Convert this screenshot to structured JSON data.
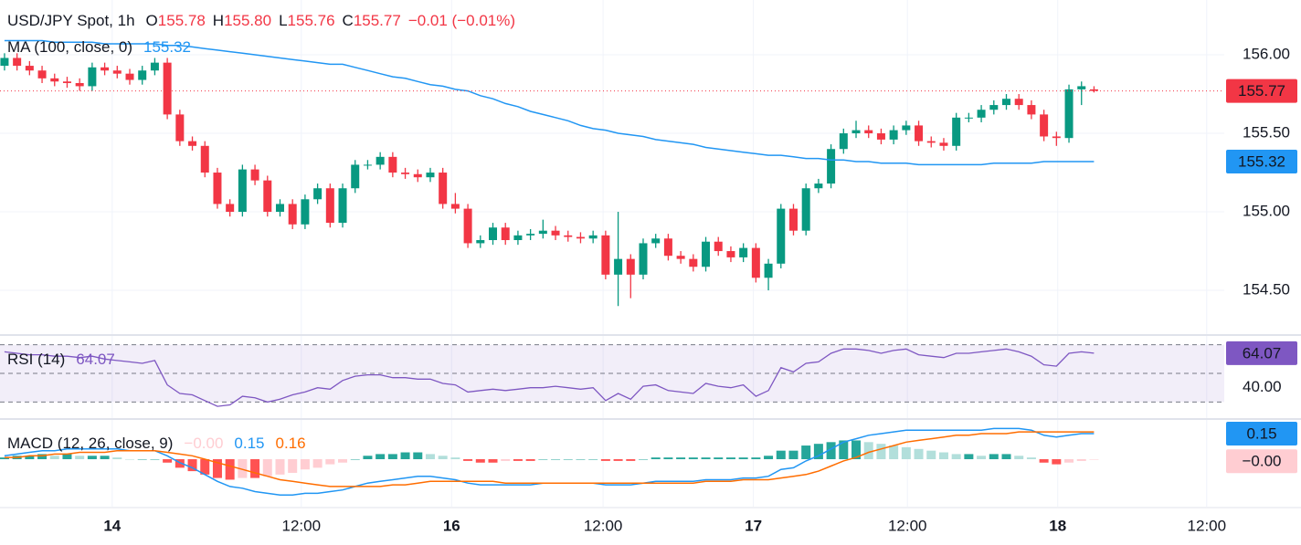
{
  "chart_data": [
    {
      "type": "candlestick",
      "legend": {
        "symbol": "USD/JPY Spot, 1h",
        "ohlc": [
          {
            "key": "O",
            "value": "155.78"
          },
          {
            "key": "H",
            "value": "155.80"
          },
          {
            "key": "L",
            "value": "155.76"
          },
          {
            "key": "C",
            "value": "155.77"
          }
        ],
        "change": "−0.01 (−0.01%)"
      },
      "up_color": "#089981",
      "down_color": "#f23645",
      "open": [
        155.93,
        155.98,
        155.93,
        155.9,
        155.85,
        155.83,
        155.82,
        155.8,
        155.92,
        155.9,
        155.88,
        155.84,
        155.9,
        155.95,
        155.62,
        155.45,
        155.42,
        155.25,
        155.05,
        155.0,
        155.27,
        155.2,
        155.0,
        155.05,
        154.92,
        155.08,
        155.15,
        154.93,
        155.15,
        155.3,
        155.3,
        155.35,
        155.25,
        155.24,
        155.22,
        155.25,
        155.05,
        155.02,
        154.8,
        154.82,
        154.9,
        154.82,
        154.85,
        154.86,
        154.88,
        154.85,
        154.84,
        154.83,
        154.85,
        154.6,
        154.7,
        154.6,
        154.8,
        154.83,
        154.72,
        154.7,
        154.65,
        154.81,
        154.75,
        154.71,
        154.77,
        154.58,
        154.67,
        155.02,
        154.88,
        155.15,
        155.18,
        155.4,
        155.5,
        155.52,
        155.5,
        155.46,
        155.52,
        155.55,
        155.45,
        155.44,
        155.42,
        155.6,
        155.6,
        155.65,
        155.68,
        155.72,
        155.68,
        155.62,
        155.48,
        155.47,
        155.78,
        155.78
      ],
      "high": [
        156.01,
        156.01,
        155.96,
        155.93,
        155.88,
        155.86,
        155.85,
        155.95,
        155.95,
        155.93,
        155.91,
        155.93,
        155.98,
        155.98,
        155.65,
        155.48,
        155.45,
        155.28,
        155.08,
        155.3,
        155.3,
        155.23,
        155.08,
        155.08,
        155.11,
        155.18,
        155.18,
        155.18,
        155.33,
        155.33,
        155.38,
        155.38,
        155.28,
        155.27,
        155.28,
        155.28,
        155.12,
        155.05,
        154.85,
        154.93,
        154.93,
        154.88,
        154.89,
        154.95,
        154.91,
        154.88,
        154.87,
        154.88,
        154.88,
        155.0,
        154.73,
        154.83,
        154.86,
        154.86,
        154.75,
        154.73,
        154.84,
        154.84,
        154.78,
        154.8,
        154.8,
        154.7,
        155.05,
        155.05,
        155.18,
        155.21,
        155.43,
        155.53,
        155.58,
        155.55,
        155.53,
        155.55,
        155.58,
        155.58,
        155.48,
        155.47,
        155.63,
        155.63,
        155.68,
        155.71,
        155.75,
        155.75,
        155.71,
        155.65,
        155.51,
        155.81,
        155.83,
        155.8
      ],
      "low": [
        155.9,
        155.9,
        155.87,
        155.82,
        155.8,
        155.79,
        155.77,
        155.77,
        155.87,
        155.85,
        155.81,
        155.81,
        155.87,
        155.59,
        155.42,
        155.39,
        155.22,
        155.02,
        154.97,
        154.97,
        155.17,
        154.97,
        154.97,
        154.89,
        154.89,
        155.05,
        154.9,
        154.9,
        155.12,
        155.27,
        155.27,
        155.22,
        155.21,
        155.19,
        155.19,
        155.02,
        154.99,
        154.77,
        154.77,
        154.79,
        154.79,
        154.79,
        154.82,
        154.83,
        154.82,
        154.81,
        154.8,
        154.8,
        154.57,
        154.4,
        154.45,
        154.57,
        154.77,
        154.69,
        154.67,
        154.62,
        154.62,
        154.72,
        154.68,
        154.68,
        154.55,
        154.5,
        154.64,
        154.85,
        154.85,
        155.12,
        155.15,
        155.37,
        155.47,
        155.47,
        155.43,
        155.43,
        155.49,
        155.42,
        155.41,
        155.39,
        155.39,
        155.57,
        155.57,
        155.62,
        155.65,
        155.65,
        155.59,
        155.45,
        155.42,
        155.44,
        155.68,
        155.76
      ],
      "close": [
        155.98,
        155.93,
        155.9,
        155.85,
        155.83,
        155.82,
        155.8,
        155.92,
        155.9,
        155.88,
        155.84,
        155.9,
        155.95,
        155.62,
        155.45,
        155.42,
        155.25,
        155.05,
        155.0,
        155.27,
        155.2,
        155.0,
        155.05,
        154.92,
        155.08,
        155.15,
        154.93,
        155.15,
        155.3,
        155.3,
        155.35,
        155.25,
        155.24,
        155.22,
        155.25,
        155.05,
        155.02,
        154.8,
        154.82,
        154.9,
        154.82,
        154.85,
        154.86,
        154.88,
        154.85,
        154.84,
        154.83,
        154.85,
        154.6,
        154.7,
        154.6,
        154.8,
        154.83,
        154.72,
        154.7,
        154.65,
        154.81,
        154.75,
        154.71,
        154.77,
        154.58,
        154.67,
        155.02,
        154.88,
        155.15,
        155.18,
        155.4,
        155.5,
        155.52,
        155.5,
        155.46,
        155.52,
        155.55,
        155.45,
        155.44,
        155.42,
        155.6,
        155.6,
        155.65,
        155.68,
        155.72,
        155.68,
        155.62,
        155.48,
        155.47,
        155.78,
        155.8,
        155.77
      ],
      "ma": {
        "name": "MA (100, close, 0)",
        "color": "#2196f3",
        "last_label": "155.32",
        "values": [
          156.09,
          156.09,
          156.09,
          156.09,
          156.08,
          156.08,
          156.08,
          156.08,
          156.07,
          156.07,
          156.07,
          156.07,
          156.07,
          156.06,
          156.06,
          156.05,
          156.04,
          156.03,
          156.02,
          156.01,
          156.0,
          155.99,
          155.98,
          155.97,
          155.96,
          155.95,
          155.94,
          155.94,
          155.92,
          155.9,
          155.88,
          155.86,
          155.85,
          155.83,
          155.81,
          155.8,
          155.78,
          155.77,
          155.74,
          155.72,
          155.69,
          155.67,
          155.64,
          155.62,
          155.6,
          155.58,
          155.55,
          155.53,
          155.52,
          155.5,
          155.49,
          155.48,
          155.46,
          155.45,
          155.44,
          155.43,
          155.41,
          155.4,
          155.39,
          155.38,
          155.37,
          155.36,
          155.36,
          155.35,
          155.34,
          155.34,
          155.33,
          155.33,
          155.32,
          155.32,
          155.31,
          155.31,
          155.31,
          155.3,
          155.3,
          155.3,
          155.3,
          155.3,
          155.3,
          155.31,
          155.31,
          155.31,
          155.31,
          155.32,
          155.32,
          155.32,
          155.32,
          155.32
        ]
      },
      "last_price": {
        "value": 155.77,
        "label": "155.77",
        "color": "#f23645"
      },
      "ylim": [
        154.227,
        156.349
      ],
      "yticks": [
        {
          "value": 154.5,
          "label": "154.50"
        },
        {
          "value": 155,
          "label": "155.00"
        },
        {
          "value": 155.5,
          "label": "155.50"
        },
        {
          "value": 156,
          "label": "156.00"
        }
      ],
      "xlim": [
        -0.36,
        97.4
      ],
      "xticks": [
        {
          "value": 8.6,
          "label": "14"
        },
        {
          "value": 23.7,
          "label": "12:00"
        },
        {
          "value": 35.7,
          "label": "16"
        },
        {
          "value": 47.8,
          "label": "12:00"
        },
        {
          "value": 59.8,
          "label": "17"
        },
        {
          "value": 72.1,
          "label": "12:00"
        },
        {
          "value": 84.1,
          "label": "18"
        },
        {
          "value": 96,
          "label": "12:00"
        }
      ],
      "grid": true
    },
    {
      "type": "line",
      "series": [
        {
          "name": "RSI (14)",
          "color": "#7e57c2",
          "last_label": "64.07",
          "values": [
            65,
            64,
            63,
            63,
            62,
            62,
            61,
            62,
            60,
            59,
            58,
            57,
            59,
            42,
            36,
            35,
            31,
            27,
            28,
            34,
            33,
            30,
            32,
            35,
            37,
            40,
            39,
            45,
            48,
            49,
            49,
            47,
            47,
            46,
            46,
            43,
            42,
            37,
            38,
            39,
            38,
            39,
            40,
            40,
            41,
            40,
            39,
            40,
            31,
            36,
            32,
            41,
            42,
            38,
            37,
            36,
            43,
            41,
            40,
            42,
            34,
            38,
            54,
            51,
            57,
            58,
            64,
            67,
            67,
            66,
            64,
            66,
            67,
            63,
            62,
            61,
            64,
            64,
            65,
            66,
            67,
            65,
            62,
            56,
            55,
            64,
            65,
            64.07
          ]
        }
      ],
      "ylim": [
        18.79,
        74.84
      ],
      "yticks": [
        {
          "value": 40,
          "label": "40.00"
        }
      ],
      "bands": [
        30,
        50,
        70
      ]
    },
    {
      "type": "macd",
      "name": "MACD (12, 26, close, 9)",
      "histogram": {
        "last_label": "−0.00",
        "colors": [
          "#26a69a",
          "#b2dfdb",
          "#ff5252",
          "#ffcdd2"
        ],
        "values": [
          0.01,
          0.02,
          0.02,
          0.03,
          0.02,
          0.03,
          0.02,
          0.02,
          0.02,
          0.01,
          0.0,
          0.0,
          0.0,
          -0.02,
          -0.05,
          -0.07,
          -0.09,
          -0.11,
          -0.12,
          -0.11,
          -0.11,
          -0.1,
          -0.09,
          -0.08,
          -0.06,
          -0.05,
          -0.03,
          -0.02,
          0.0,
          0.02,
          0.03,
          0.03,
          0.04,
          0.04,
          0.03,
          0.02,
          0.01,
          -0.01,
          -0.02,
          -0.02,
          -0.01,
          -0.01,
          -0.01,
          0.0,
          0.0,
          0.0,
          0.0,
          0.0,
          -0.01,
          -0.01,
          -0.01,
          0.0,
          0.01,
          0.01,
          0.01,
          0.01,
          0.01,
          0.01,
          0.01,
          0.01,
          0.01,
          0.02,
          0.05,
          0.05,
          0.08,
          0.09,
          0.1,
          0.11,
          0.11,
          0.1,
          0.09,
          0.08,
          0.07,
          0.06,
          0.05,
          0.04,
          0.03,
          0.03,
          0.02,
          0.03,
          0.03,
          0.02,
          0.01,
          -0.02,
          -0.03,
          -0.02,
          -0.01,
          -0.001
        ]
      },
      "macd": {
        "color": "#2196f3",
        "last_label": "0.15",
        "values": [
          0.02,
          0.03,
          0.04,
          0.05,
          0.05,
          0.06,
          0.06,
          0.06,
          0.06,
          0.06,
          0.05,
          0.05,
          0.05,
          0.02,
          -0.02,
          -0.05,
          -0.09,
          -0.13,
          -0.16,
          -0.17,
          -0.19,
          -0.2,
          -0.21,
          -0.21,
          -0.2,
          -0.2,
          -0.19,
          -0.18,
          -0.16,
          -0.14,
          -0.13,
          -0.12,
          -0.11,
          -0.1,
          -0.1,
          -0.11,
          -0.12,
          -0.14,
          -0.15,
          -0.15,
          -0.15,
          -0.15,
          -0.15,
          -0.14,
          -0.14,
          -0.14,
          -0.14,
          -0.14,
          -0.15,
          -0.15,
          -0.15,
          -0.14,
          -0.13,
          -0.13,
          -0.13,
          -0.13,
          -0.12,
          -0.12,
          -0.12,
          -0.11,
          -0.11,
          -0.1,
          -0.06,
          -0.05,
          -0.01,
          0.02,
          0.06,
          0.1,
          0.12,
          0.14,
          0.15,
          0.16,
          0.17,
          0.17,
          0.17,
          0.17,
          0.17,
          0.17,
          0.17,
          0.18,
          0.18,
          0.18,
          0.17,
          0.14,
          0.13,
          0.14,
          0.15,
          0.15
        ]
      },
      "signal": {
        "color": "#ff6d00",
        "last_label": "0.16",
        "values": [
          0.01,
          0.01,
          0.02,
          0.02,
          0.03,
          0.03,
          0.04,
          0.04,
          0.04,
          0.05,
          0.05,
          0.05,
          0.05,
          0.04,
          0.03,
          0.02,
          0.0,
          -0.02,
          -0.04,
          -0.06,
          -0.08,
          -0.1,
          -0.12,
          -0.13,
          -0.14,
          -0.15,
          -0.16,
          -0.16,
          -0.16,
          -0.16,
          -0.16,
          -0.15,
          -0.15,
          -0.14,
          -0.13,
          -0.13,
          -0.13,
          -0.13,
          -0.13,
          -0.13,
          -0.14,
          -0.14,
          -0.14,
          -0.14,
          -0.14,
          -0.14,
          -0.14,
          -0.14,
          -0.14,
          -0.14,
          -0.14,
          -0.14,
          -0.14,
          -0.14,
          -0.14,
          -0.14,
          -0.13,
          -0.13,
          -0.13,
          -0.12,
          -0.12,
          -0.12,
          -0.11,
          -0.1,
          -0.09,
          -0.07,
          -0.04,
          -0.01,
          0.01,
          0.04,
          0.06,
          0.08,
          0.1,
          0.11,
          0.12,
          0.13,
          0.14,
          0.14,
          0.15,
          0.15,
          0.15,
          0.16,
          0.16,
          0.16,
          0.16,
          0.16,
          0.16,
          0.16
        ]
      },
      "ylim": [
        -0.278,
        0.23
      ]
    }
  ]
}
